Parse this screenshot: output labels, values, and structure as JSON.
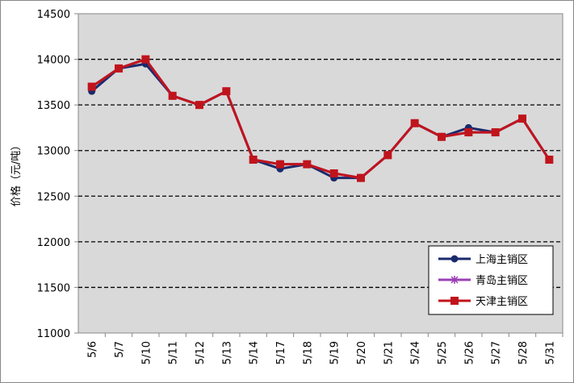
{
  "chart_data": {
    "type": "line",
    "y_label": "价格（元/吨）",
    "categories": [
      "5/6",
      "5/7",
      "5/10",
      "5/11",
      "5/12",
      "5/13",
      "5/14",
      "5/17",
      "5/18",
      "5/19",
      "5/20",
      "5/21",
      "5/24",
      "5/25",
      "5/26",
      "5/27",
      "5/28",
      "5/31"
    ],
    "series": [
      {
        "name": "上海主销区",
        "color": "#1a2a6c",
        "marker": "circle",
        "values": [
          13650,
          13900,
          13950,
          13600,
          13500,
          13650,
          12900,
          12800,
          12850,
          12700,
          12700,
          12950,
          13300,
          13150,
          13250,
          13200,
          13350,
          12900
        ]
      },
      {
        "name": "青岛主销区",
        "color": "#9b3fb5",
        "marker": "star",
        "values": [
          13700,
          13900,
          14000,
          13600,
          13500,
          13650,
          12900,
          12850,
          12850,
          12750,
          12700,
          12950,
          13300,
          13150,
          13200,
          13200,
          13350,
          12900
        ]
      },
      {
        "name": "天津主销区",
        "color": "#c0141c",
        "marker": "square",
        "values": [
          13700,
          13900,
          14000,
          13600,
          13500,
          13650,
          12900,
          12850,
          12850,
          12750,
          12700,
          12950,
          13300,
          13150,
          13200,
          13200,
          13350,
          12900
        ]
      }
    ],
    "ylim": [
      11000,
      14500
    ],
    "yticks": [
      11000,
      11500,
      12000,
      12500,
      13000,
      13500,
      14000,
      14500
    ],
    "grid": true
  }
}
